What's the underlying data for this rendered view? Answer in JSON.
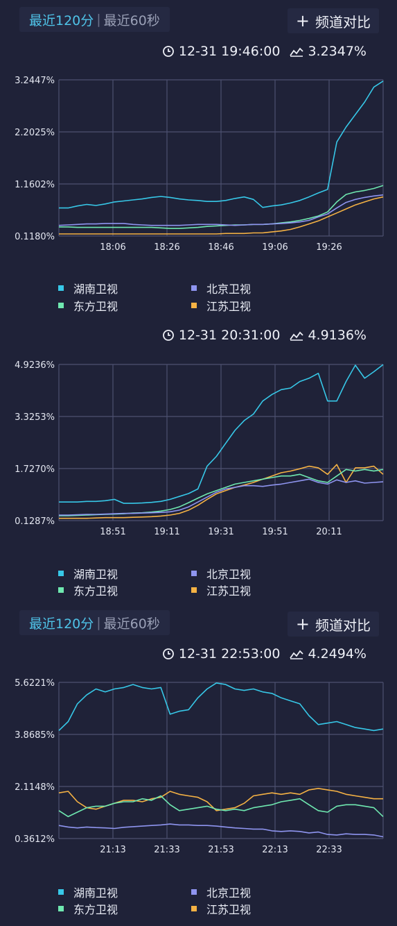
{
  "colors": {
    "hunan": "#37c8e8",
    "beijing": "#8f95f0",
    "dongfang": "#6fe8b0",
    "jiangsu": "#f5b244"
  },
  "panel1": {
    "tabs": {
      "active": "最近120分",
      "sep": "|",
      "idle": "最近60秒"
    },
    "compare_label": "频道对比",
    "time": "12-31 19:46:00",
    "rating": "3.2347%"
  },
  "panel2": {
    "time": "12-31 20:31:00",
    "rating": "4.9136%"
  },
  "panel3": {
    "tabs": {
      "active": "最近120分",
      "sep": "|",
      "idle": "最近60秒"
    },
    "compare_label": "频道对比",
    "time": "12-31 22:53:00",
    "rating": "4.2494%"
  },
  "chart_data": [
    {
      "type": "line",
      "yticks": [
        "3.2447%",
        "2.2025%",
        "1.1602%",
        "0.1180%"
      ],
      "ylim": [
        0.118,
        3.2447
      ],
      "xticks": [
        "18:06",
        "18:26",
        "18:46",
        "19:06",
        "19:26"
      ],
      "legend": [
        "湖南卫视",
        "北京卫视",
        "东方卫视",
        "江苏卫视"
      ],
      "series": [
        {
          "name": "湖南卫视",
          "values": [
            0.68,
            0.68,
            0.72,
            0.75,
            0.73,
            0.76,
            0.8,
            0.82,
            0.84,
            0.86,
            0.89,
            0.91,
            0.89,
            0.86,
            0.84,
            0.83,
            0.81,
            0.81,
            0.83,
            0.87,
            0.9,
            0.85,
            0.69,
            0.72,
            0.74,
            0.78,
            0.83,
            0.9,
            0.98,
            1.05,
            2.0,
            2.3,
            2.55,
            2.8,
            3.1,
            3.22
          ]
        },
        {
          "name": "北京卫视",
          "values": [
            0.33,
            0.34,
            0.35,
            0.36,
            0.36,
            0.37,
            0.37,
            0.37,
            0.35,
            0.34,
            0.33,
            0.33,
            0.33,
            0.33,
            0.34,
            0.35,
            0.35,
            0.35,
            0.34,
            0.33,
            0.34,
            0.35,
            0.35,
            0.36,
            0.37,
            0.38,
            0.4,
            0.43,
            0.5,
            0.56,
            0.68,
            0.79,
            0.85,
            0.89,
            0.92,
            0.94
          ]
        },
        {
          "name": "东方卫视",
          "values": [
            0.3,
            0.3,
            0.29,
            0.29,
            0.29,
            0.29,
            0.29,
            0.29,
            0.29,
            0.29,
            0.29,
            0.28,
            0.27,
            0.27,
            0.28,
            0.29,
            0.31,
            0.32,
            0.33,
            0.34,
            0.34,
            0.35,
            0.35,
            0.36,
            0.38,
            0.4,
            0.43,
            0.47,
            0.52,
            0.6,
            0.8,
            0.95,
            1.0,
            1.03,
            1.07,
            1.13
          ]
        },
        {
          "name": "江苏卫视",
          "values": [
            0.16,
            0.16,
            0.16,
            0.16,
            0.16,
            0.16,
            0.16,
            0.16,
            0.16,
            0.16,
            0.16,
            0.16,
            0.16,
            0.16,
            0.16,
            0.16,
            0.16,
            0.16,
            0.17,
            0.17,
            0.17,
            0.18,
            0.18,
            0.2,
            0.22,
            0.25,
            0.3,
            0.36,
            0.42,
            0.5,
            0.58,
            0.66,
            0.74,
            0.8,
            0.86,
            0.9
          ]
        }
      ]
    },
    {
      "type": "line",
      "yticks": [
        "4.9236%",
        "3.3253%",
        "1.7270%",
        "0.1287%"
      ],
      "ylim": [
        0.1287,
        4.9236
      ],
      "xticks": [
        "18:51",
        "19:11",
        "19:31",
        "19:51",
        "20:11"
      ],
      "legend": [
        "湖南卫视",
        "北京卫视",
        "东方卫视",
        "江苏卫视"
      ],
      "series": [
        {
          "name": "湖南卫视",
          "values": [
            0.7,
            0.7,
            0.7,
            0.72,
            0.72,
            0.74,
            0.78,
            0.66,
            0.66,
            0.67,
            0.69,
            0.72,
            0.78,
            0.87,
            0.96,
            1.1,
            1.8,
            2.1,
            2.5,
            2.9,
            3.2,
            3.4,
            3.8,
            4.0,
            4.15,
            4.2,
            4.4,
            4.5,
            4.65,
            3.8,
            3.8,
            4.4,
            4.9,
            4.5,
            4.7,
            4.92
          ]
        },
        {
          "name": "北京卫视",
          "values": [
            0.3,
            0.3,
            0.31,
            0.32,
            0.32,
            0.33,
            0.34,
            0.35,
            0.35,
            0.36,
            0.37,
            0.38,
            0.4,
            0.45,
            0.55,
            0.7,
            0.85,
            1.0,
            1.1,
            1.15,
            1.2,
            1.2,
            1.18,
            1.22,
            1.25,
            1.3,
            1.35,
            1.4,
            1.3,
            1.25,
            1.38,
            1.3,
            1.35,
            1.28,
            1.3,
            1.32
          ]
        },
        {
          "name": "东方卫视",
          "values": [
            0.28,
            0.28,
            0.29,
            0.3,
            0.31,
            0.32,
            0.33,
            0.34,
            0.36,
            0.37,
            0.39,
            0.42,
            0.47,
            0.55,
            0.68,
            0.82,
            0.95,
            1.05,
            1.15,
            1.25,
            1.3,
            1.35,
            1.4,
            1.45,
            1.5,
            1.5,
            1.55,
            1.45,
            1.35,
            1.3,
            1.5,
            1.7,
            1.65,
            1.7,
            1.65,
            1.7
          ]
        },
        {
          "name": "江苏卫视",
          "values": [
            0.2,
            0.2,
            0.2,
            0.2,
            0.21,
            0.22,
            0.22,
            0.22,
            0.23,
            0.24,
            0.25,
            0.27,
            0.3,
            0.35,
            0.45,
            0.6,
            0.78,
            0.95,
            1.05,
            1.15,
            1.22,
            1.3,
            1.4,
            1.5,
            1.6,
            1.65,
            1.72,
            1.8,
            1.75,
            1.55,
            1.85,
            1.3,
            1.75,
            1.75,
            1.8,
            1.55
          ]
        }
      ]
    },
    {
      "type": "line",
      "yticks": [
        "5.6221%",
        "3.8685%",
        "2.1148%",
        "0.3612%"
      ],
      "ylim": [
        0.3612,
        5.6221
      ],
      "xticks": [
        "21:13",
        "21:33",
        "21:53",
        "22:13",
        "22:33"
      ],
      "legend": [
        "湖南卫视",
        "北京卫视",
        "东方卫视",
        "江苏卫视"
      ],
      "series": [
        {
          "name": "湖南卫视",
          "values": [
            4.0,
            4.3,
            4.9,
            5.2,
            5.4,
            5.3,
            5.4,
            5.45,
            5.55,
            5.45,
            5.4,
            5.45,
            4.55,
            4.65,
            4.7,
            5.1,
            5.4,
            5.6,
            5.55,
            5.4,
            5.35,
            5.4,
            5.3,
            5.25,
            5.1,
            5.0,
            4.9,
            4.5,
            4.2,
            4.25,
            4.3,
            4.2,
            4.1,
            4.05,
            4.0,
            4.05
          ]
        },
        {
          "name": "北京卫视",
          "values": [
            0.8,
            0.75,
            0.72,
            0.75,
            0.73,
            0.72,
            0.7,
            0.74,
            0.76,
            0.78,
            0.8,
            0.82,
            0.85,
            0.82,
            0.82,
            0.8,
            0.8,
            0.78,
            0.75,
            0.72,
            0.7,
            0.68,
            0.68,
            0.62,
            0.6,
            0.62,
            0.6,
            0.55,
            0.58,
            0.5,
            0.48,
            0.52,
            0.5,
            0.5,
            0.48,
            0.42
          ]
        },
        {
          "name": "东方卫视",
          "values": [
            1.3,
            1.1,
            1.25,
            1.4,
            1.45,
            1.45,
            1.55,
            1.6,
            1.6,
            1.7,
            1.65,
            1.8,
            1.5,
            1.3,
            1.35,
            1.4,
            1.45,
            1.35,
            1.3,
            1.35,
            1.3,
            1.4,
            1.45,
            1.5,
            1.6,
            1.65,
            1.7,
            1.5,
            1.3,
            1.25,
            1.45,
            1.5,
            1.5,
            1.45,
            1.4,
            1.1
          ]
        },
        {
          "name": "江苏卫视",
          "values": [
            1.9,
            1.95,
            1.6,
            1.4,
            1.35,
            1.45,
            1.55,
            1.65,
            1.65,
            1.6,
            1.7,
            1.75,
            1.95,
            1.85,
            1.8,
            1.75,
            1.6,
            1.3,
            1.35,
            1.4,
            1.55,
            1.8,
            1.85,
            1.9,
            1.85,
            1.9,
            1.85,
            2.0,
            2.05,
            2.0,
            1.95,
            1.85,
            1.8,
            1.75,
            1.7,
            1.7
          ]
        }
      ]
    }
  ]
}
